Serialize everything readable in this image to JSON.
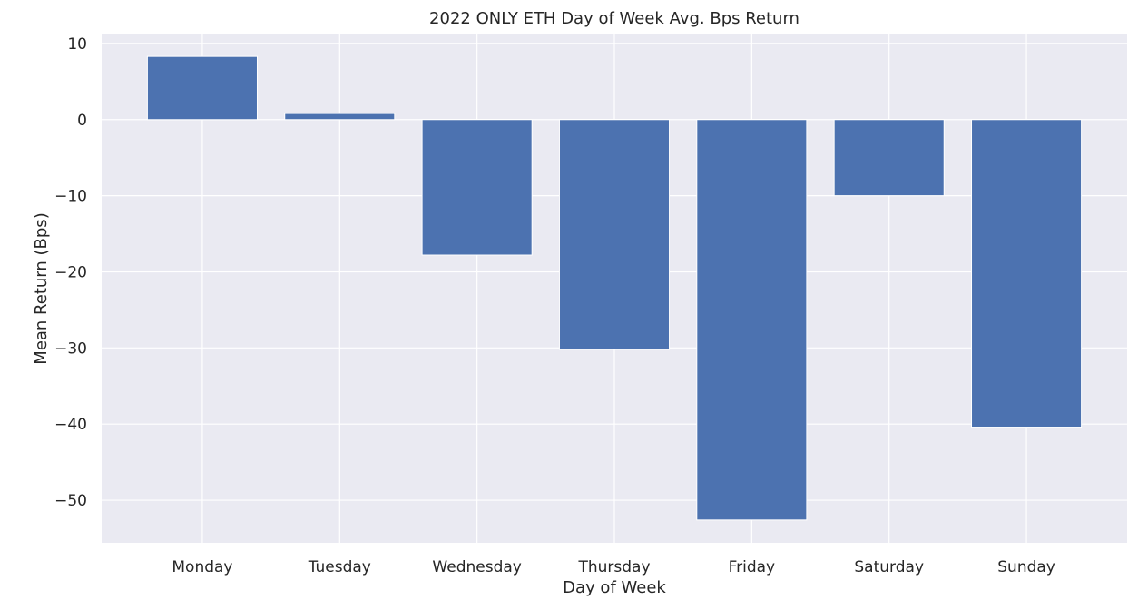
{
  "chart_data": {
    "type": "bar",
    "title": "2022 ONLY ETH Day of Week Avg. Bps Return",
    "xlabel": "Day of Week",
    "ylabel": "Mean Return (Bps)",
    "categories": [
      "Monday",
      "Tuesday",
      "Wednesday",
      "Thursday",
      "Friday",
      "Saturday",
      "Sunday"
    ],
    "values": [
      8.3,
      0.8,
      -17.8,
      -30.2,
      -52.6,
      -10.0,
      -40.4
    ],
    "ylim": [
      -55.6,
      11.3
    ],
    "yticks": [
      10,
      0,
      -10,
      -20,
      -30,
      -40,
      -50
    ],
    "ytick_labels": [
      "10",
      "0",
      "−10",
      "−20",
      "−30",
      "−40",
      "−50"
    ],
    "grid": true,
    "colors": {
      "bar": "#4c72b0",
      "background": "#eaeaf2",
      "grid": "#ffffff",
      "text": "#262626"
    }
  }
}
